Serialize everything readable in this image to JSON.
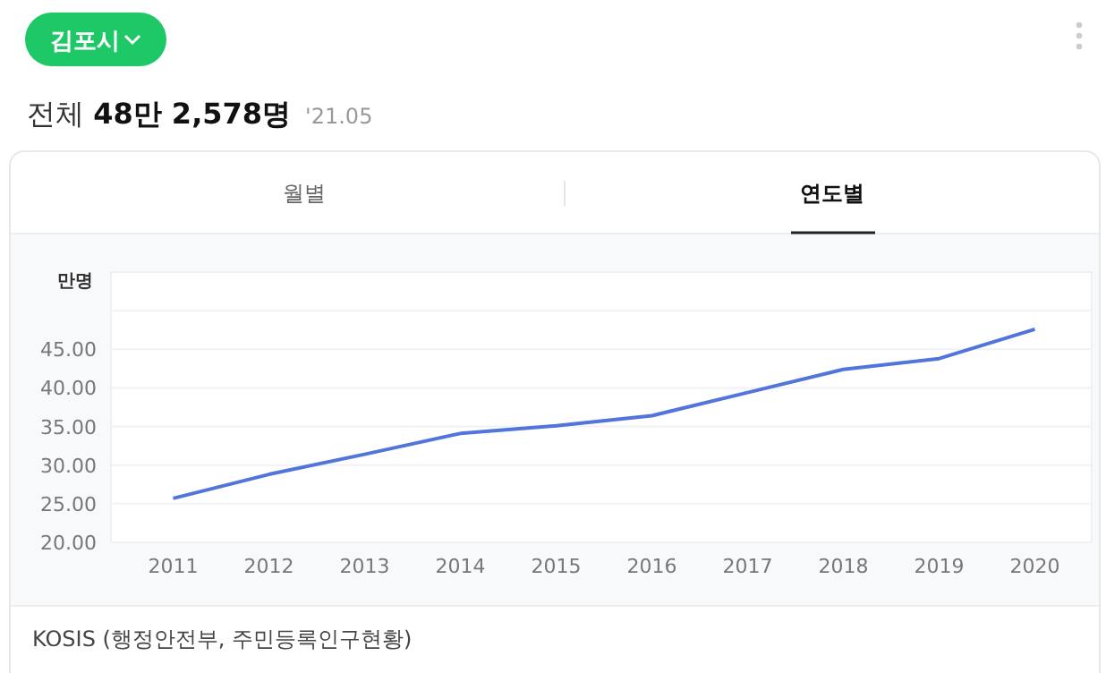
{
  "chart_data": {
    "type": "line",
    "title": "전체 48만 2,578명",
    "subtitle": "'21.05",
    "ylabel": "만명",
    "annotations": [
      "김포시",
      "월별",
      "연도별",
      "KOSIS (행정안전부, 주민등록인구현황)"
    ],
    "categories": [
      "2011",
      "2012",
      "2013",
      "2014",
      "2015",
      "2016",
      "2017",
      "2018",
      "2019",
      "2020"
    ],
    "series": [
      {
        "color": "#5275dc",
        "values": [
          25.7,
          28.8,
          31.4,
          34.1,
          35.1,
          36.4,
          39.4,
          42.4,
          43.8,
          47.6
        ]
      }
    ],
    "ylim": [
      20,
      55
    ],
    "yticks": [
      {
        "value": 20,
        "label": "20.00"
      },
      {
        "value": 25,
        "label": "25.00"
      },
      {
        "value": 30,
        "label": "30.00"
      },
      {
        "value": 35,
        "label": "35.00"
      },
      {
        "value": 40,
        "label": "40.00"
      },
      {
        "value": 45,
        "label": "45.00"
      },
      {
        "value": 50,
        "label": null
      }
    ],
    "grid": "y",
    "marker": "none",
    "line_style": "solid"
  }
}
